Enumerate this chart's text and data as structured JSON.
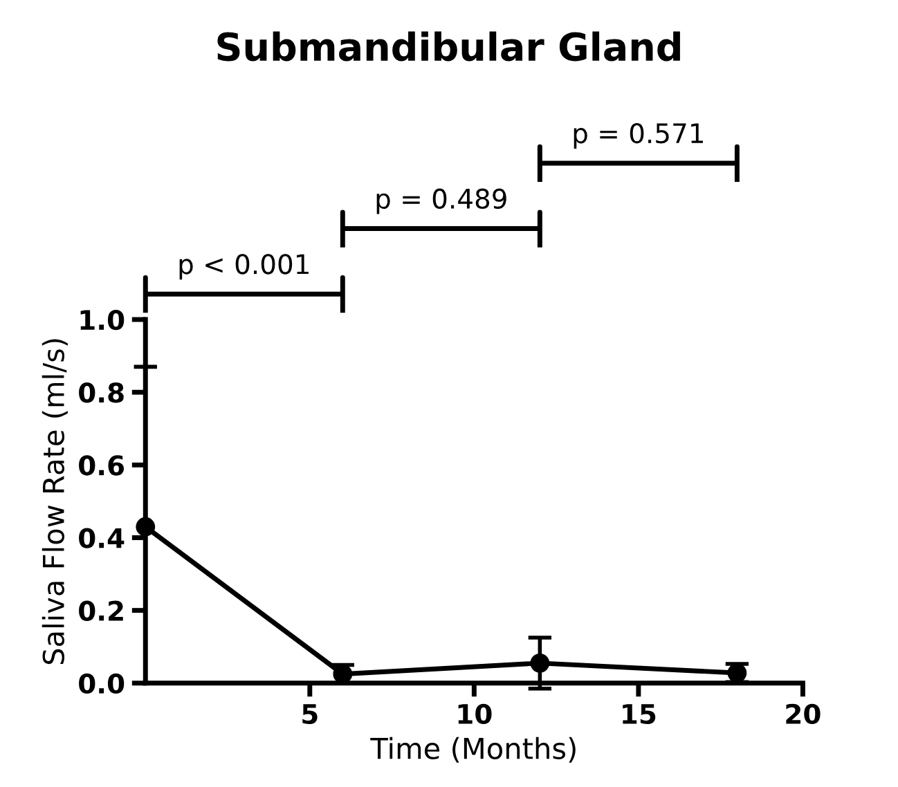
{
  "chart_data": {
    "type": "line",
    "title": "Submandibular Gland",
    "xlabel": "Time (Months)",
    "ylabel": "Saliva Flow Rate (ml/s)",
    "x": [
      0,
      6,
      12,
      18
    ],
    "series": [
      {
        "color": "#000000",
        "values": [
          0.43,
          0.025,
          0.055,
          0.028
        ],
        "errors": [
          [
            0,
            0.87
          ],
          [
            0,
            0.05
          ],
          [
            -0.015,
            0.125
          ],
          [
            0.003,
            0.053
          ]
        ]
      }
    ],
    "xlim": [
      0,
      20
    ],
    "xticks": [
      5,
      10,
      15,
      20
    ],
    "ylim": [
      0,
      1.0
    ],
    "yticks": [
      {
        "value": 0,
        "label": "0.0"
      },
      {
        "value": 0.2,
        "label": "0.2"
      },
      {
        "value": 0.4,
        "label": "0.4"
      },
      {
        "value": 0.6,
        "label": "0.6"
      },
      {
        "value": 0.8,
        "label": "0.8"
      },
      {
        "value": 1.0,
        "label": "1.0"
      }
    ],
    "marker": "circle",
    "line_style": "solid",
    "grid": false,
    "annotations": [
      "p < 0.001",
      "p = 0.489",
      "p = 0.571"
    ]
  }
}
